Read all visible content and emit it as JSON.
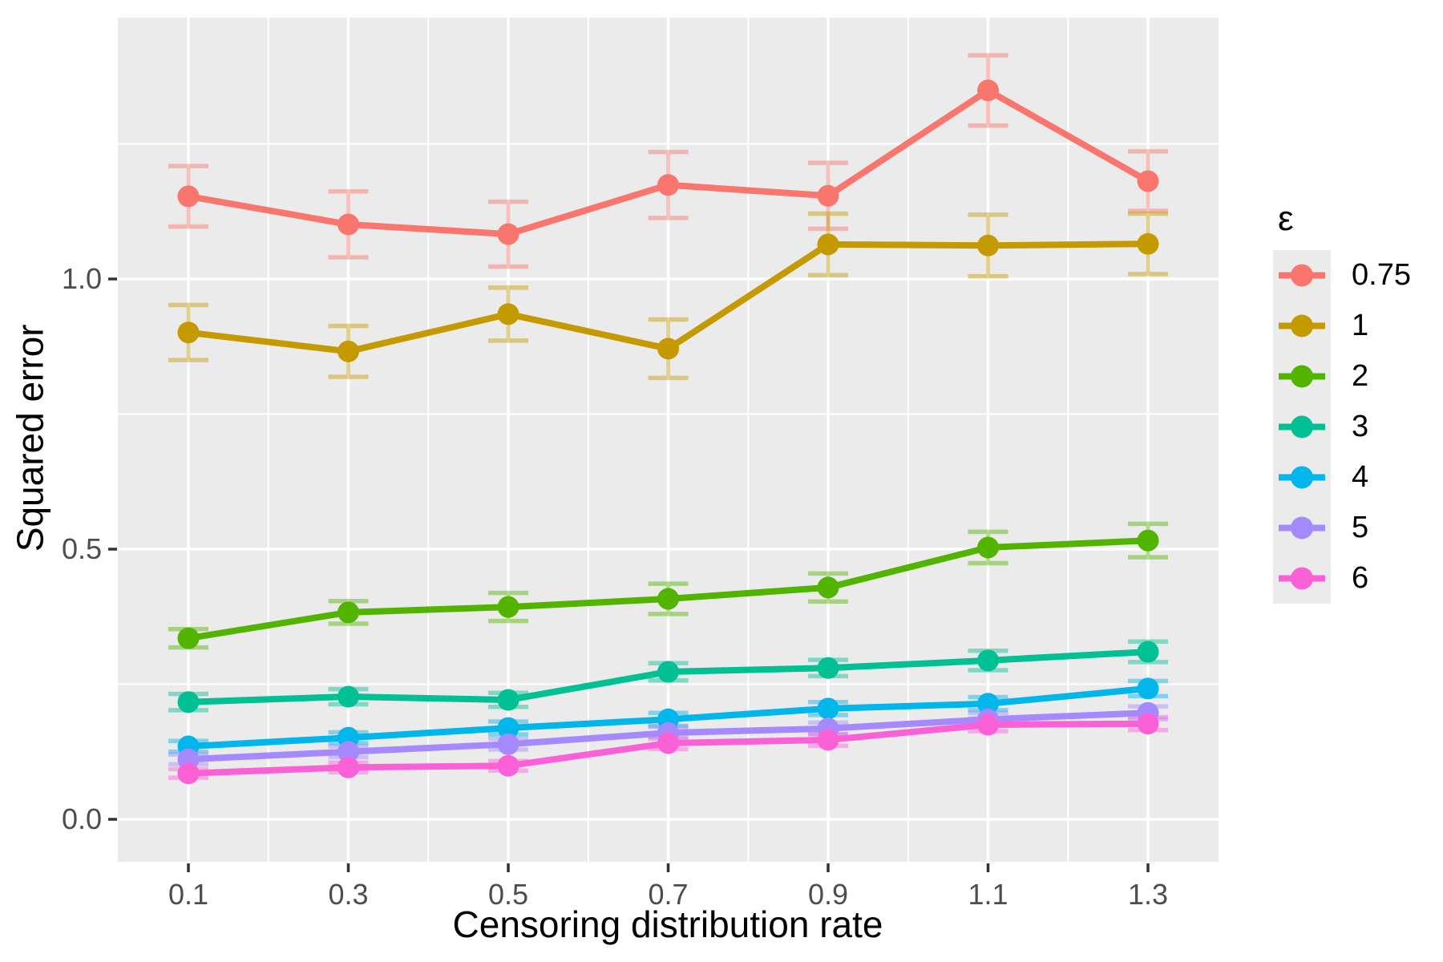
{
  "figure": {
    "x_axis_title": "Censoring distribution rate",
    "y_axis_title": "Squared error"
  },
  "legend": {
    "title": "ε",
    "position": "right"
  },
  "colors": {
    "panel_bg": "#EBEBEB",
    "grid": "#FFFFFF",
    "tick_mark": "#333333",
    "tick_label": "#4D4D4D",
    "axis_title": "#000000"
  },
  "chart_data": {
    "type": "line",
    "title": "",
    "xlabel": "Censoring distribution rate",
    "ylabel": "Squared error",
    "x": [
      0.1,
      0.3,
      0.5,
      0.7,
      0.9,
      1.1,
      1.3
    ],
    "x_tick_labels": [
      "0.1",
      "0.3",
      "0.5",
      "0.7",
      "0.9",
      "1.1",
      "1.3"
    ],
    "y_ticks": {
      "values": [
        0.0,
        0.5,
        1.0
      ],
      "labels": [
        "0.0",
        "0.5",
        "1.0"
      ]
    },
    "xlim": [
      0.012,
      1.388
    ],
    "ylim": [
      -0.079,
      1.487
    ],
    "grid": "white major+minor on grey panel",
    "legend_position": "right",
    "error_bars": true,
    "series": [
      {
        "name": "0.75",
        "color": "#F8766D",
        "values": [
          1.153,
          1.101,
          1.083,
          1.174,
          1.154,
          1.349,
          1.181
        ],
        "err": [
          0.056,
          0.061,
          0.06,
          0.061,
          0.061,
          0.065,
          0.055
        ]
      },
      {
        "name": "1",
        "color": "#C49A00",
        "values": [
          0.901,
          0.866,
          0.935,
          0.871,
          1.064,
          1.062,
          1.065
        ],
        "err": [
          0.051,
          0.047,
          0.049,
          0.054,
          0.057,
          0.057,
          0.056
        ]
      },
      {
        "name": "2",
        "color": "#53B400",
        "values": [
          0.335,
          0.383,
          0.393,
          0.408,
          0.429,
          0.503,
          0.516
        ],
        "err": [
          0.017,
          0.021,
          0.026,
          0.028,
          0.026,
          0.029,
          0.031
        ]
      },
      {
        "name": "3",
        "color": "#00C094",
        "values": [
          0.217,
          0.227,
          0.221,
          0.273,
          0.28,
          0.294,
          0.31
        ],
        "err": [
          0.015,
          0.014,
          0.013,
          0.016,
          0.015,
          0.018,
          0.019
        ]
      },
      {
        "name": "4",
        "color": "#00B6EB",
        "values": [
          0.135,
          0.151,
          0.169,
          0.185,
          0.205,
          0.214,
          0.242
        ],
        "err": [
          0.01,
          0.01,
          0.012,
          0.012,
          0.012,
          0.012,
          0.014
        ]
      },
      {
        "name": "5",
        "color": "#A58AFF",
        "values": [
          0.111,
          0.125,
          0.139,
          0.16,
          0.168,
          0.185,
          0.197
        ],
        "err": [
          0.009,
          0.01,
          0.01,
          0.011,
          0.011,
          0.012,
          0.012
        ]
      },
      {
        "name": "6",
        "color": "#FB61D7",
        "values": [
          0.085,
          0.096,
          0.099,
          0.141,
          0.147,
          0.175,
          0.177
        ],
        "err": [
          0.008,
          0.009,
          0.009,
          0.011,
          0.011,
          0.012,
          0.012
        ]
      }
    ]
  }
}
